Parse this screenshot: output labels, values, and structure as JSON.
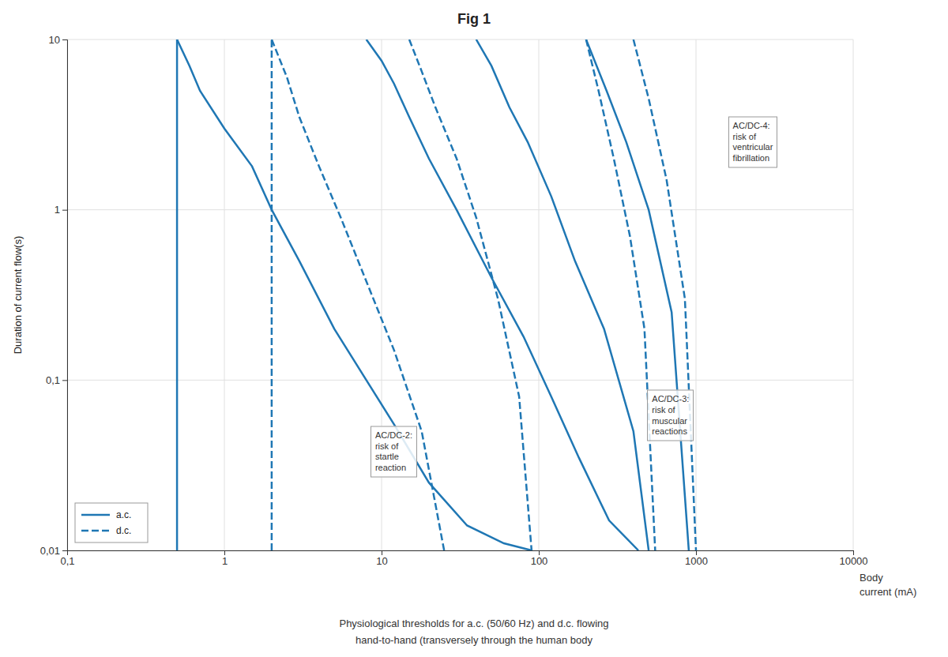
{
  "chart_data": {
    "type": "line",
    "title": "Fig 1",
    "subtitle": "Physiological thresholds for a.c. (50/60 Hz) and d.c. flowing\nhand-to-hand (transversely through the human body",
    "ylabel": "Duration of current flow(s)",
    "xlabel": "Body\ncurrent (mA)",
    "log": true,
    "grid": true,
    "legend": "lower left",
    "xlim": [
      0.1,
      10000
    ],
    "ylim": [
      0.01,
      10
    ],
    "xticks": [
      {
        "value": 0.1,
        "label": "0,1"
      },
      1,
      10,
      100,
      1000,
      10000
    ],
    "yticks": [
      {
        "value": 0.01,
        "label": "0,01"
      },
      {
        "value": 0.1,
        "label": "0,1"
      },
      1,
      10
    ],
    "series": [
      {
        "name": "a.c.",
        "type": "vline",
        "line_style": "solid",
        "x": 0.5
      },
      {
        "name": "a.c.",
        "type": "line",
        "line_style": "solid",
        "x": [
          0.5,
          0.6,
          0.7,
          1.0,
          1.5,
          2.0,
          3.0,
          5.0,
          8.0,
          12.0,
          20.0,
          35.0,
          60.0,
          90.0
        ],
        "values": [
          10.0,
          7.0,
          5.0,
          3.0,
          1.8,
          1.0,
          0.5,
          0.2,
          0.1,
          0.055,
          0.025,
          0.014,
          0.011,
          0.01
        ]
      },
      {
        "name": "a.c.",
        "type": "line",
        "line_style": "solid",
        "x": [
          8.0,
          10.0,
          12.0,
          15.0,
          20.0,
          30.0,
          50.0,
          80.0,
          120.0,
          180.0,
          280.0,
          430.0
        ],
        "values": [
          10.0,
          7.5,
          5.5,
          3.5,
          2.0,
          1.0,
          0.4,
          0.18,
          0.08,
          0.035,
          0.015,
          0.01
        ]
      },
      {
        "name": "a.c.",
        "type": "line",
        "line_style": "solid",
        "x": [
          40.0,
          50.0,
          65.0,
          85.0,
          120.0,
          170.0,
          260.0,
          400.0,
          500.0
        ],
        "values": [
          10.0,
          7.0,
          4.0,
          2.5,
          1.2,
          0.5,
          0.2,
          0.05,
          0.01
        ]
      },
      {
        "name": "a.c.",
        "type": "line",
        "line_style": "solid",
        "x": [
          200.0,
          270.0,
          360.0,
          500.0,
          700.0,
          900.0
        ],
        "values": [
          10.0,
          5.0,
          2.5,
          1.0,
          0.25,
          0.01
        ]
      },
      {
        "name": "d.c.",
        "type": "vline",
        "line_style": "dashed",
        "x": 2.0
      },
      {
        "name": "d.c.",
        "type": "line",
        "line_style": "dashed",
        "x": [
          2.0,
          2.5,
          3.0,
          4.0,
          5.5,
          8.0,
          12.0,
          18.0,
          25.0
        ],
        "values": [
          10.0,
          6.0,
          3.5,
          1.8,
          0.9,
          0.38,
          0.15,
          0.05,
          0.01
        ]
      },
      {
        "name": "d.c.",
        "type": "line",
        "line_style": "dashed",
        "x": [
          15.0,
          18.0,
          22.0,
          30.0,
          40.0,
          55.0,
          75.0,
          90.0
        ],
        "values": [
          10.0,
          6.5,
          4.0,
          2.0,
          0.9,
          0.3,
          0.08,
          0.01
        ]
      },
      {
        "name": "d.c.",
        "type": "line",
        "line_style": "dashed",
        "x": [
          200.0,
          240.0,
          300.0,
          380.0,
          470.0,
          550.0
        ],
        "values": [
          10.0,
          5.0,
          2.0,
          0.7,
          0.2,
          0.01
        ]
      },
      {
        "name": "d.c.",
        "type": "line",
        "line_style": "dashed",
        "x": [
          400.0,
          500.0,
          650.0,
          850.0,
          1000.0
        ],
        "values": [
          10.0,
          4.5,
          1.5,
          0.3,
          0.01
        ]
      }
    ],
    "annotations": [
      {
        "text": "AC/DC-4:\nrisk of\nventricular\nfibrillation",
        "x": 1600,
        "y": 2.5
      },
      {
        "text": "AC/DC-3:\nrisk of\nmuscular\nreactions",
        "x": 490,
        "y": 0.062
      },
      {
        "text": "AC/DC-2:\nrisk of\nstartle\nreaction",
        "x": 8.5,
        "y": 0.038
      }
    ]
  }
}
